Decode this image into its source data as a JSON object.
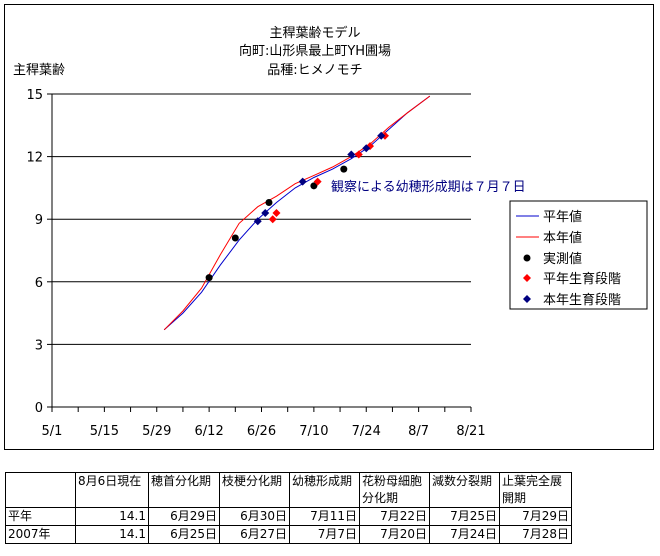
{
  "chart_data": {
    "type": "line",
    "title_lines": [
      "主稈葉齢モデル",
      "向町:山形県最上町YH圃場",
      "品種:ヒメノモチ"
    ],
    "ylabel": "主稈葉齢",
    "ylim": [
      0,
      15
    ],
    "yticks": [
      0,
      3,
      6,
      9,
      12,
      15
    ],
    "xlim": [
      "05-01",
      "08-21"
    ],
    "xticks": [
      "5/1",
      "5/15",
      "5/29",
      "6/12",
      "6/26",
      "7/10",
      "7/24",
      "8/7",
      "8/21"
    ],
    "grid": "horizontal",
    "legend_position": "right",
    "annotation": "観察による幼穂形成期は７月７日",
    "series": [
      {
        "name": "平年値",
        "kind": "line",
        "color": "#0000cc",
        "points": [
          [
            "05-31",
            3.7
          ],
          [
            "06-05",
            4.5
          ],
          [
            "06-10",
            5.5
          ],
          [
            "06-15",
            6.8
          ],
          [
            "06-20",
            8.0
          ],
          [
            "06-25",
            9.0
          ],
          [
            "06-30",
            9.8
          ],
          [
            "07-05",
            10.5
          ],
          [
            "07-10",
            11.0
          ],
          [
            "07-15",
            11.4
          ],
          [
            "07-20",
            11.9
          ],
          [
            "07-25",
            12.5
          ],
          [
            "07-30",
            13.3
          ],
          [
            "08-04",
            14.1
          ],
          [
            "08-10",
            14.9
          ]
        ]
      },
      {
        "name": "本年値",
        "kind": "line",
        "color": "#ff0000",
        "points": [
          [
            "05-31",
            3.7
          ],
          [
            "06-05",
            4.6
          ],
          [
            "06-10",
            5.7
          ],
          [
            "06-15",
            7.3
          ],
          [
            "06-20",
            8.8
          ],
          [
            "06-25",
            9.6
          ],
          [
            "06-30",
            10.1
          ],
          [
            "07-05",
            10.7
          ],
          [
            "07-10",
            11.1
          ],
          [
            "07-15",
            11.5
          ],
          [
            "07-20",
            12.0
          ],
          [
            "07-25",
            12.6
          ],
          [
            "07-30",
            13.4
          ],
          [
            "08-04",
            14.1
          ],
          [
            "08-10",
            14.9
          ]
        ]
      },
      {
        "name": "実測値",
        "kind": "marker",
        "marker": "circle",
        "color": "#000000",
        "points": [
          [
            "06-12",
            6.2
          ],
          [
            "06-19",
            8.1
          ],
          [
            "06-28",
            9.8
          ],
          [
            "07-10",
            10.6
          ],
          [
            "07-18",
            11.4
          ]
        ]
      },
      {
        "name": "平年生育段階",
        "kind": "marker",
        "marker": "diamond",
        "color": "#ff0000",
        "points": [
          [
            "06-29",
            9.0
          ],
          [
            "06-30",
            9.3
          ],
          [
            "07-11",
            10.8
          ],
          [
            "07-22",
            12.1
          ],
          [
            "07-25",
            12.5
          ],
          [
            "07-29",
            13.0
          ]
        ]
      },
      {
        "name": "本年生育段階",
        "kind": "marker",
        "marker": "diamond",
        "color": "#000080",
        "points": [
          [
            "06-25",
            8.9
          ],
          [
            "06-27",
            9.3
          ],
          [
            "07-07",
            10.8
          ],
          [
            "07-20",
            12.1
          ],
          [
            "07-24",
            12.4
          ],
          [
            "07-28",
            13.0
          ]
        ]
      }
    ]
  },
  "table": {
    "headers": [
      "",
      "8月6日現在",
      "穂首分化期",
      "枝梗分化期",
      "幼穂形成期",
      "花粉母細胞分化期",
      "減数分裂期",
      "止葉完全展開期"
    ],
    "rows": [
      [
        "平年",
        "14.1",
        "6月29日",
        "6月30日",
        "7月11日",
        "7月22日",
        "7月25日",
        "7月29日"
      ],
      [
        "2007年",
        "14.1",
        "6月25日",
        "6月27日",
        "7月7日",
        "7月20日",
        "7月24日",
        "7月28日"
      ]
    ]
  }
}
